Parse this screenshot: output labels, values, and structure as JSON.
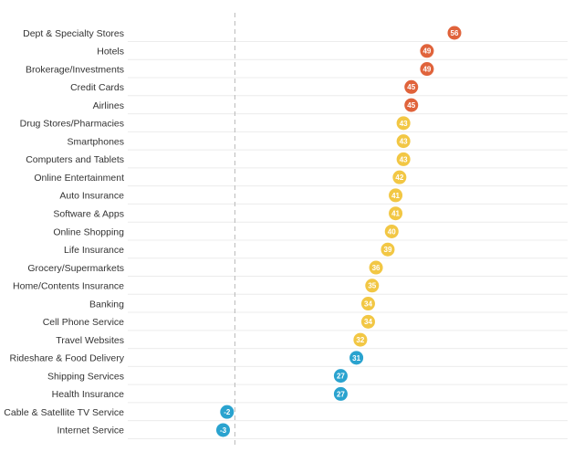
{
  "chart_data": {
    "type": "scatter",
    "title": "",
    "xlabel": "",
    "ylabel": "",
    "xlim": [
      -3,
      56
    ],
    "zero_reference_line": true,
    "grid": "horizontal",
    "colors": {
      "high": "#e0633b",
      "mid": "#f2c744",
      "low": "#2aa3cf"
    },
    "points": [
      {
        "category": "Dept & Specialty Stores",
        "value": 56,
        "value_text": "56",
        "tier": "high"
      },
      {
        "category": "Hotels",
        "value": 49,
        "value_text": "49",
        "tier": "high"
      },
      {
        "category": "Brokerage/Investments",
        "value": 49,
        "value_text": "49",
        "tier": "high"
      },
      {
        "category": "Credit Cards",
        "value": 45,
        "value_text": "45",
        "tier": "high"
      },
      {
        "category": "Airlines",
        "value": 45,
        "value_text": "45",
        "tier": "high"
      },
      {
        "category": "Drug Stores/Pharmacies",
        "value": 43,
        "value_text": "43",
        "tier": "mid"
      },
      {
        "category": "Smartphones",
        "value": 43,
        "value_text": "43",
        "tier": "mid"
      },
      {
        "category": "Computers and Tablets",
        "value": 43,
        "value_text": "43",
        "tier": "mid"
      },
      {
        "category": "Online Entertainment",
        "value": 42,
        "value_text": "42",
        "tier": "mid"
      },
      {
        "category": "Auto Insurance",
        "value": 41,
        "value_text": "41",
        "tier": "mid"
      },
      {
        "category": "Software & Apps",
        "value": 41,
        "value_text": "41",
        "tier": "mid"
      },
      {
        "category": "Online Shopping",
        "value": 40,
        "value_text": "40",
        "tier": "mid"
      },
      {
        "category": "Life Insurance",
        "value": 39,
        "value_text": "39",
        "tier": "mid"
      },
      {
        "category": "Grocery/Supermarkets",
        "value": 36,
        "value_text": "36",
        "tier": "mid"
      },
      {
        "category": "Home/Contents Insurance",
        "value": 35,
        "value_text": "35",
        "tier": "mid"
      },
      {
        "category": "Banking",
        "value": 34,
        "value_text": "34",
        "tier": "mid"
      },
      {
        "category": "Cell Phone Service",
        "value": 34,
        "value_text": "34",
        "tier": "mid"
      },
      {
        "category": "Travel Websites",
        "value": 32,
        "value_text": "32",
        "tier": "mid"
      },
      {
        "category": "Rideshare & Food Delivery",
        "value": 31,
        "value_text": "31",
        "tier": "low"
      },
      {
        "category": "Shipping Services",
        "value": 27,
        "value_text": "27",
        "tier": "low"
      },
      {
        "category": "Health Insurance",
        "value": 27,
        "value_text": "27",
        "tier": "low"
      },
      {
        "category": "Cable & Satellite TV Service",
        "value": -2,
        "value_text": "-2",
        "tier": "low"
      },
      {
        "category": "Internet Service",
        "value": -3,
        "value_text": "-3",
        "tier": "low"
      }
    ]
  }
}
